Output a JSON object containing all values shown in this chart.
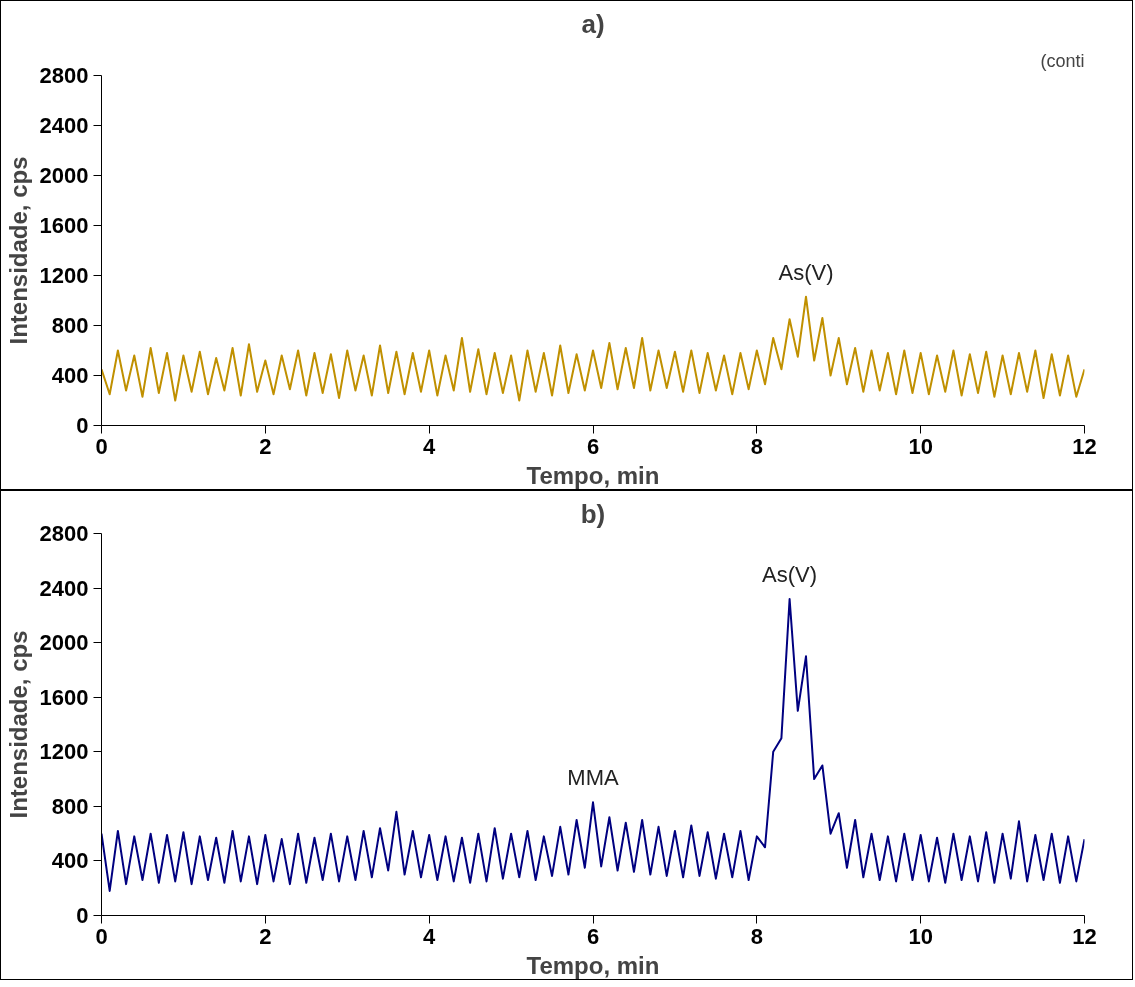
{
  "chart_data": [
    {
      "type": "line",
      "title": "a)",
      "xlabel": "Tempo, min",
      "ylabel": "Intensidade, cps",
      "xlim": [
        0,
        12
      ],
      "xticks": [
        0,
        2,
        4,
        6,
        8,
        10,
        12
      ],
      "ylim": [
        0,
        2800
      ],
      "yticks": [
        0,
        400,
        800,
        1200,
        1600,
        2000,
        2400,
        2800
      ],
      "grid": false,
      "marker": "none",
      "line_style": "solid",
      "annotations": [
        "(conti",
        {
          "text": "As(V)",
          "x": 8.6,
          "y": 1030
        }
      ],
      "x": [
        0,
        0.1,
        0.2,
        0.3,
        0.4,
        0.5,
        0.6,
        0.7,
        0.8,
        0.9,
        1,
        1.1,
        1.2,
        1.3,
        1.4,
        1.5,
        1.6,
        1.7,
        1.8,
        1.9,
        2,
        2.1,
        2.2,
        2.3,
        2.4,
        2.5,
        2.6,
        2.7,
        2.8,
        2.9,
        3,
        3.1,
        3.2,
        3.3,
        3.4,
        3.5,
        3.6,
        3.7,
        3.8,
        3.9,
        4,
        4.1,
        4.2,
        4.3,
        4.4,
        4.5,
        4.6,
        4.7,
        4.8,
        4.9,
        5,
        5.1,
        5.2,
        5.3,
        5.4,
        5.5,
        5.6,
        5.7,
        5.8,
        5.9,
        6,
        6.1,
        6.2,
        6.3,
        6.4,
        6.5,
        6.6,
        6.7,
        6.8,
        6.9,
        7,
        7.1,
        7.2,
        7.3,
        7.4,
        7.5,
        7.6,
        7.7,
        7.8,
        7.9,
        8,
        8.1,
        8.2,
        8.3,
        8.4,
        8.5,
        8.6,
        8.7,
        8.8,
        8.9,
        9,
        9.1,
        9.2,
        9.3,
        9.4,
        9.5,
        9.6,
        9.7,
        9.8,
        9.9,
        10,
        10.1,
        10.2,
        10.3,
        10.4,
        10.5,
        10.6,
        10.7,
        10.8,
        10.9,
        11,
        11.1,
        11.2,
        11.3,
        11.4,
        11.5,
        11.6,
        11.7,
        11.8,
        11.9,
        12
      ],
      "series": [
        {
          "color": "#c09000",
          "values": [
            450,
            250,
            600,
            280,
            560,
            230,
            620,
            260,
            580,
            200,
            560,
            270,
            590,
            250,
            540,
            280,
            620,
            240,
            650,
            270,
            520,
            250,
            560,
            290,
            600,
            240,
            580,
            260,
            570,
            220,
            600,
            280,
            560,
            240,
            640,
            260,
            590,
            250,
            580,
            270,
            600,
            240,
            560,
            280,
            700,
            270,
            610,
            250,
            580,
            260,
            560,
            200,
            600,
            270,
            580,
            240,
            640,
            260,
            570,
            280,
            600,
            300,
            660,
            290,
            620,
            300,
            700,
            280,
            600,
            300,
            590,
            270,
            600,
            260,
            580,
            280,
            560,
            250,
            580,
            290,
            600,
            330,
            700,
            450,
            850,
            550,
            1030,
            520,
            860,
            400,
            700,
            330,
            620,
            270,
            600,
            280,
            580,
            250,
            600,
            260,
            580,
            250,
            560,
            270,
            600,
            240,
            570,
            260,
            590,
            230,
            560,
            250,
            580,
            270,
            600,
            220,
            570,
            240,
            560,
            230,
            450
          ]
        }
      ]
    },
    {
      "type": "line",
      "title": "b)",
      "xlabel": "Tempo, min",
      "ylabel": "Intensidade, cps",
      "xlim": [
        0,
        12
      ],
      "xticks": [
        0,
        2,
        4,
        6,
        8,
        10,
        12
      ],
      "ylim": [
        0,
        2800
      ],
      "yticks": [
        0,
        400,
        800,
        1200,
        1600,
        2000,
        2400,
        2800
      ],
      "grid": false,
      "marker": "none",
      "line_style": "solid",
      "annotations": [
        {
          "text": "MMA",
          "x": 6,
          "y": 830
        },
        {
          "text": "As(V)",
          "x": 8.4,
          "y": 2320
        }
      ],
      "x": [
        0,
        0.1,
        0.2,
        0.3,
        0.4,
        0.5,
        0.6,
        0.7,
        0.8,
        0.9,
        1,
        1.1,
        1.2,
        1.3,
        1.4,
        1.5,
        1.6,
        1.7,
        1.8,
        1.9,
        2,
        2.1,
        2.2,
        2.3,
        2.4,
        2.5,
        2.6,
        2.7,
        2.8,
        2.9,
        3,
        3.1,
        3.2,
        3.3,
        3.4,
        3.5,
        3.6,
        3.7,
        3.8,
        3.9,
        4,
        4.1,
        4.2,
        4.3,
        4.4,
        4.5,
        4.6,
        4.7,
        4.8,
        4.9,
        5,
        5.1,
        5.2,
        5.3,
        5.4,
        5.5,
        5.6,
        5.7,
        5.8,
        5.9,
        6,
        6.1,
        6.2,
        6.3,
        6.4,
        6.5,
        6.6,
        6.7,
        6.8,
        6.9,
        7,
        7.1,
        7.2,
        7.3,
        7.4,
        7.5,
        7.6,
        7.7,
        7.8,
        7.9,
        8,
        8.1,
        8.2,
        8.3,
        8.4,
        8.5,
        8.6,
        8.7,
        8.8,
        8.9,
        9,
        9.1,
        9.2,
        9.3,
        9.4,
        9.5,
        9.6,
        9.7,
        9.8,
        9.9,
        10,
        10.1,
        10.2,
        10.3,
        10.4,
        10.5,
        10.6,
        10.7,
        10.8,
        10.9,
        11,
        11.1,
        11.2,
        11.3,
        11.4,
        11.5,
        11.6,
        11.7,
        11.8,
        11.9,
        12
      ],
      "series": [
        {
          "color": "#000080",
          "values": [
            600,
            180,
            620,
            230,
            580,
            260,
            600,
            240,
            590,
            250,
            610,
            230,
            580,
            260,
            570,
            240,
            620,
            250,
            580,
            230,
            590,
            250,
            560,
            230,
            600,
            240,
            570,
            260,
            600,
            250,
            580,
            260,
            620,
            280,
            640,
            330,
            760,
            300,
            620,
            280,
            590,
            260,
            580,
            250,
            570,
            240,
            600,
            250,
            640,
            270,
            600,
            280,
            620,
            260,
            580,
            290,
            650,
            300,
            700,
            350,
            830,
            360,
            720,
            330,
            680,
            320,
            700,
            300,
            650,
            290,
            620,
            280,
            660,
            290,
            610,
            270,
            600,
            280,
            620,
            260,
            580,
            500,
            1200,
            1300,
            2320,
            1500,
            1900,
            1000,
            1100,
            600,
            750,
            350,
            700,
            280,
            600,
            260,
            580,
            250,
            600,
            260,
            590,
            250,
            570,
            240,
            600,
            260,
            580,
            250,
            610,
            240,
            600,
            270,
            690,
            250,
            590,
            260,
            600,
            240,
            580,
            250,
            560
          ]
        }
      ]
    }
  ]
}
